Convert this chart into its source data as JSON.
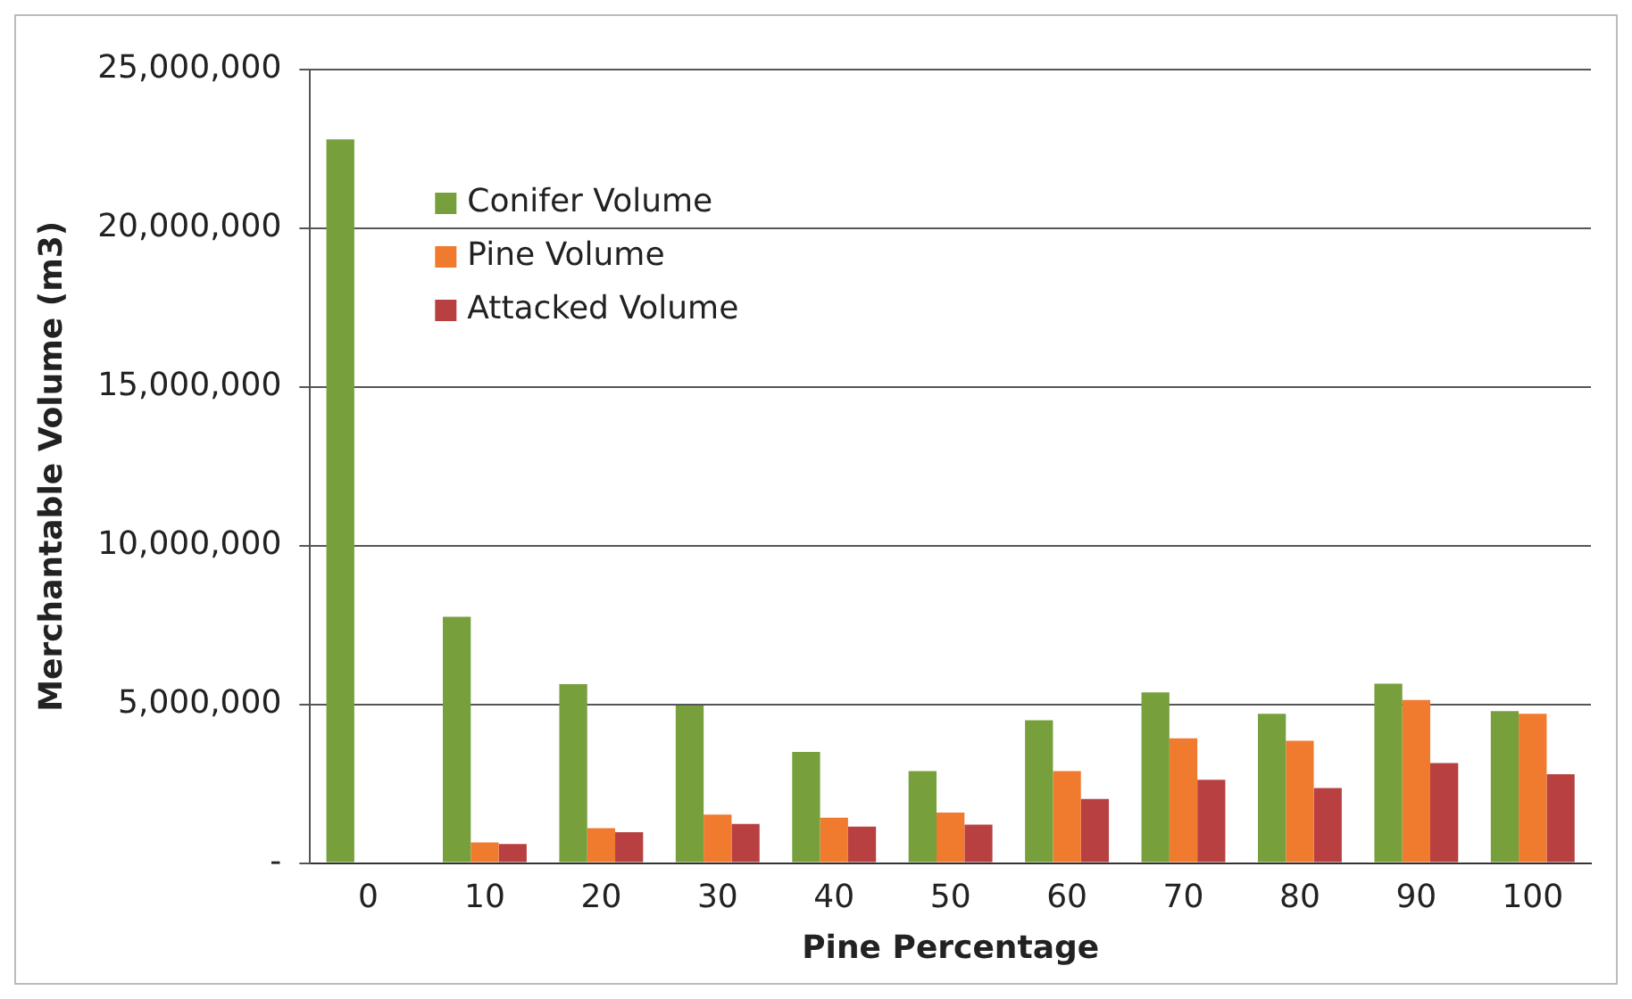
{
  "chart_data": {
    "type": "bar",
    "xlabel": "Pine Percentage",
    "ylabel": "Merchantable Volume (m3)",
    "categories": [
      "0",
      "10",
      "20",
      "30",
      "40",
      "50",
      "60",
      "70",
      "80",
      "90",
      "100"
    ],
    "series": [
      {
        "name": "Conifer Volume",
        "color": "#77a03c",
        "values": [
          22800000,
          7760000,
          5640000,
          4960000,
          3500000,
          2900000,
          4500000,
          5380000,
          4700000,
          5650000,
          4790000
        ]
      },
      {
        "name": "Pine Volume",
        "color": "#f07a2e",
        "values": [
          0,
          650000,
          1100000,
          1530000,
          1430000,
          1590000,
          2900000,
          3930000,
          3850000,
          5140000,
          4700000
        ]
      },
      {
        "name": "Attacked Volume",
        "color": "#b84040",
        "values": [
          0,
          600000,
          970000,
          1230000,
          1150000,
          1210000,
          2020000,
          2620000,
          2360000,
          3150000,
          2800000
        ]
      }
    ],
    "ylim": [
      0,
      25000000
    ],
    "yticks": [
      {
        "value": 0,
        "label": "-"
      },
      {
        "value": 5000000,
        "label": "5,000,000"
      },
      {
        "value": 10000000,
        "label": "10,000,000"
      },
      {
        "value": 15000000,
        "label": "15,000,000"
      },
      {
        "value": 20000000,
        "label": "20,000,000"
      },
      {
        "value": 25000000,
        "label": "25,000,000"
      }
    ],
    "grid": "y",
    "legend": "top left"
  }
}
